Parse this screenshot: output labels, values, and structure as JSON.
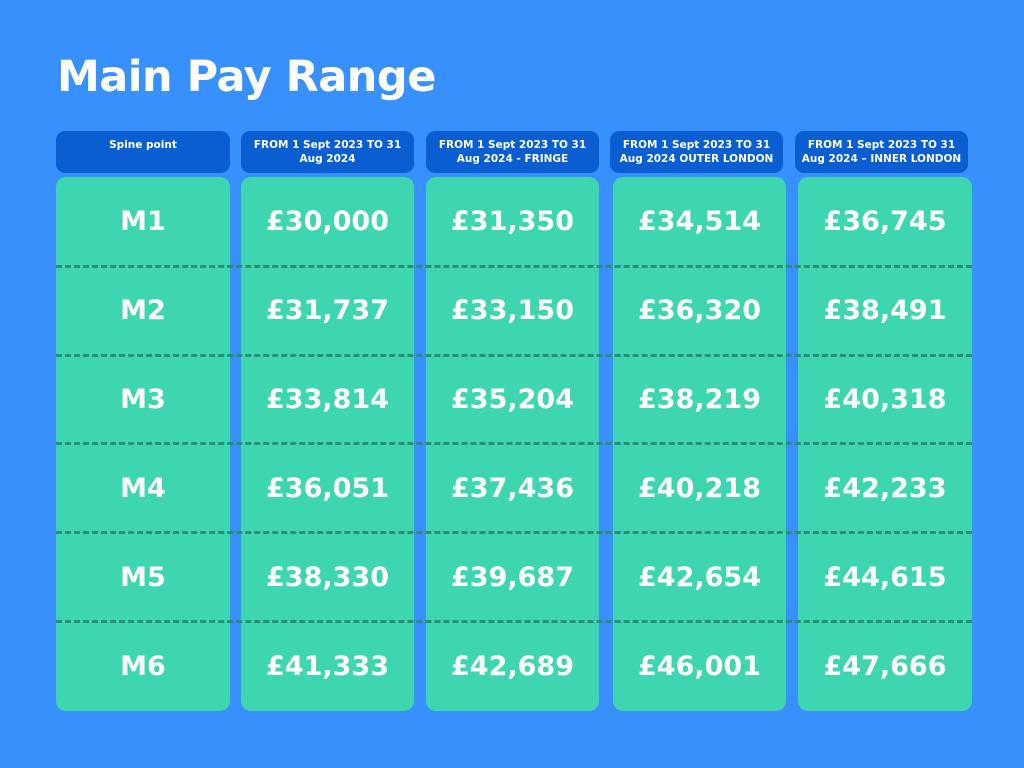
{
  "title": "Main Pay Range",
  "table": {
    "headers": [
      "Spine point",
      "FROM 1 Sept 2023 TO 31 Aug 2024",
      "FROM 1 Sept 2023 TO 31 Aug 2024 - FRINGE",
      "FROM 1 Sept 2023 TO 31 Aug 2024 OUTER LONDON",
      "FROM 1 Sept 2023 TO 31 Aug 2024 – INNER LONDON"
    ],
    "rows": [
      [
        "M1",
        "£30,000",
        "£31,350",
        "£34,514",
        "£36,745"
      ],
      [
        "M2",
        "£31,737",
        "£33,150",
        "£36,320",
        "£38,491"
      ],
      [
        "M3",
        "£33,814",
        "£35,204",
        "£38,219",
        "£40,318"
      ],
      [
        "M4",
        "£36,051",
        "£37,436",
        "£40,218",
        "£42,233"
      ],
      [
        "M5",
        "£38,330",
        "£39,687",
        "£42,654",
        "£44,615"
      ],
      [
        "M6",
        "£41,333",
        "£42,689",
        "£46,001",
        "£47,666"
      ]
    ]
  },
  "colors": {
    "background": "#3790fc",
    "header": "#0a5ed2",
    "column": "#3ed6b1",
    "divider": "#2d8e78",
    "text": "#ffffff"
  }
}
